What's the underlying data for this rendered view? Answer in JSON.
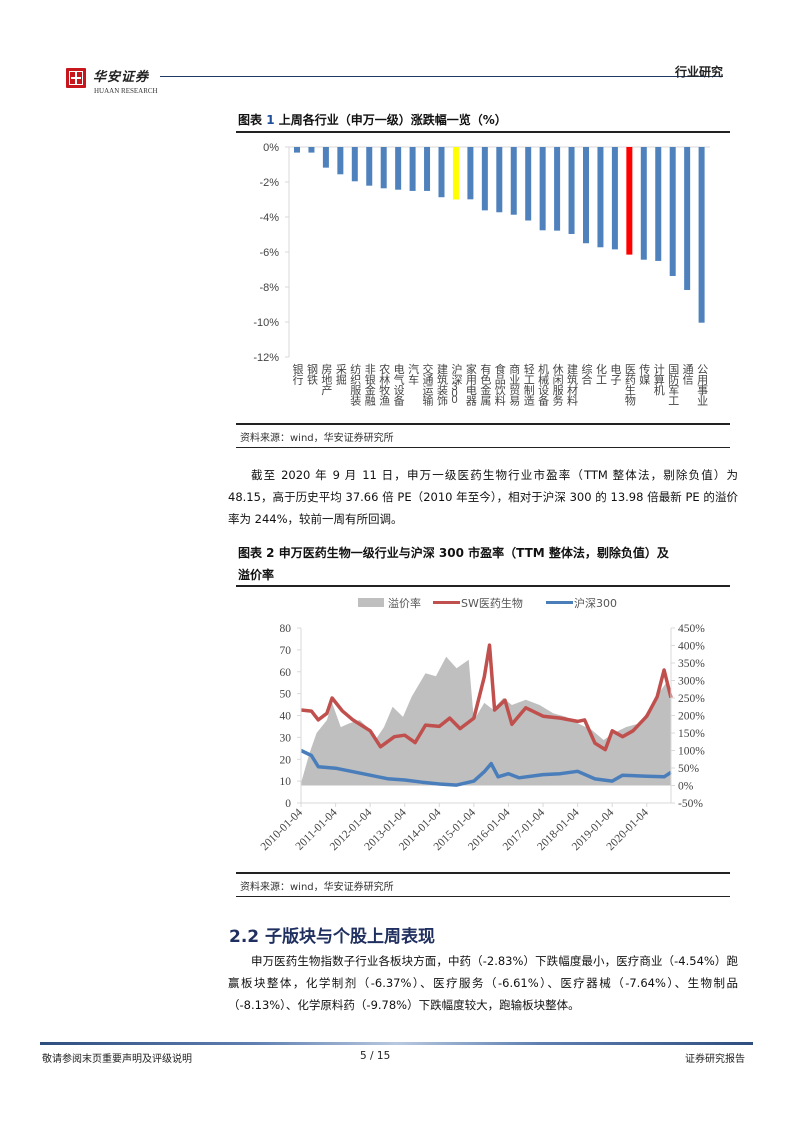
{
  "header": {
    "brand_cn": "华安证券",
    "brand_en": "HUAAN RESEARCH",
    "section_tag": "行业研究"
  },
  "figure1": {
    "label": "图表",
    "num": "1",
    "title": "上周各行业（申万一级）涨跌幅一览（%）",
    "source": "资料来源：wind，华安证券研究所"
  },
  "paragraph1": "截至 2020 年 9 月 11 日，申万一级医药生物行业市盈率（TTM 整体法，剔除负值）为 48.15，高于历史平均 37.66 倍 PE（2010 年至今），相对于沪深 300 的 13.98 倍最新 PE 的溢价率为 244%，较前一周有所回调。",
  "figure2": {
    "title_line1": "图表 2 申万医药生物一级行业与沪深 300 市盈率（TTM 整体法，剔除负值）及",
    "title_line2": "溢价率",
    "source": "资料来源：wind，华安证券研究所"
  },
  "section": {
    "heading": "2.2 子版块与个股上周表现",
    "paragraph": "申万医药生物指数子行业各板块方面，中药（-2.83%）下跌幅度最小，医疗商业（-4.54%）跑赢板块整体，化学制剂（-6.37%）、医疗服务（-6.61%）、医疗器械（-7.64%）、生物制品（-8.13%）、化学原料药（-9.78%）下跌幅度较大，跑输板块整体。"
  },
  "footer": {
    "disclaimer": "敬请参阅末页重要声明及评级说明",
    "page": "5 / 15",
    "doc_type": "证券研究报告"
  },
  "colors": {
    "bar": "#4f81bd",
    "highlight_index": "#ffff00",
    "highlight_pharma": "#ff0000",
    "sw_line": "#c0504d",
    "hs300_line": "#4a7ebb",
    "premium_area": "#bfbfbf",
    "heading": "#1f2f5f"
  },
  "chart_data": [
    {
      "type": "bar",
      "title": "上周各行业（申万一级）涨跌幅一览（%）",
      "xlabel": "",
      "ylabel": "",
      "ylim": [
        -12,
        0
      ],
      "yticks": [
        "0%",
        "-2%",
        "-4%",
        "-6%",
        "-8%",
        "-10%",
        "-12%"
      ],
      "grid": false,
      "categories": [
        "银行",
        "钢铁",
        "房地产",
        "采掘",
        "纺织服装",
        "非银金融",
        "农林牧渔",
        "电气设备",
        "汽车",
        "交通运输",
        "建筑装饰",
        "沪深300",
        "家用电器",
        "有色金属",
        "食品饮料",
        "商业贸易",
        "轻工制造",
        "机械设备",
        "休闲服务",
        "建筑材料",
        "综合",
        "化工",
        "电子",
        "医药生物",
        "传媒",
        "计算机",
        "国防军工",
        "通信",
        "公用事业"
      ],
      "values": [
        -0.32,
        -0.32,
        -1.18,
        -1.56,
        -1.96,
        -2.21,
        -2.36,
        -2.44,
        -2.51,
        -2.51,
        -2.87,
        -3.0,
        -2.99,
        -3.62,
        -3.73,
        -3.87,
        -4.2,
        -4.76,
        -4.78,
        -4.97,
        -5.5,
        -5.73,
        -5.85,
        -6.15,
        -6.44,
        -6.51,
        -7.37,
        -8.17,
        -10.04
      ],
      "highlights": {
        "沪深300": "#ffff00",
        "医药生物": "#ff0000"
      }
    },
    {
      "type": "line",
      "title": "申万医药生物一级行业与沪深300市盈率（TTM整体法，剔除负值）及溢价率",
      "legend": [
        "溢价率",
        "SW医药生物",
        "沪深300"
      ],
      "legend_position": "top",
      "xlabel": "",
      "ylabel": "",
      "ylim": [
        0,
        80
      ],
      "y2lim": [
        -50,
        450
      ],
      "yticks": [
        "0",
        "10",
        "20",
        "30",
        "40",
        "50",
        "60",
        "70",
        "80"
      ],
      "y2ticks": [
        "-50%",
        "0%",
        "50%",
        "100%",
        "150%",
        "200%",
        "250%",
        "300%",
        "350%",
        "400%",
        "450%"
      ],
      "xticks": [
        "2010-01-04",
        "2011-01-04",
        "2012-01-04",
        "2013-01-04",
        "2014-01-04",
        "2015-01-04",
        "2016-01-04",
        "2017-01-04",
        "2018-01-04",
        "2019-01-04",
        "2020-01-04"
      ],
      "series": [
        {
          "name": "溢价率",
          "axis": "right",
          "style": "area",
          "x": [
            2010.0,
            2010.25,
            2010.45,
            2010.75,
            2010.9,
            2011.15,
            2011.4,
            2011.7,
            2012.0,
            2012.15,
            2012.4,
            2012.65,
            2012.95,
            2013.2,
            2013.6,
            2013.9,
            2014.2,
            2014.5,
            2014.85,
            2015.0,
            2015.3,
            2015.55,
            2015.85,
            2016.1,
            2016.5,
            2016.9,
            2017.3,
            2017.65,
            2018.0,
            2018.4,
            2018.75,
            2019.05,
            2019.4,
            2019.8,
            2020.1,
            2020.35,
            2020.55,
            2020.7
          ],
          "values": [
            7,
            93,
            150,
            187,
            236,
            167,
            178,
            187,
            159,
            130,
            167,
            225,
            196,
            254,
            321,
            312,
            368,
            335,
            359,
            187,
            236,
            217,
            250,
            230,
            245,
            230,
            206,
            197,
            178,
            159,
            130,
            150,
            167,
            178,
            225,
            264,
            292,
            244
          ]
        },
        {
          "name": "SW医药生物",
          "axis": "left",
          "style": "line",
          "x": [
            2010.0,
            2010.3,
            2010.5,
            2010.75,
            2010.9,
            2011.2,
            2011.5,
            2012.0,
            2012.3,
            2012.7,
            2013.0,
            2013.3,
            2013.6,
            2014.0,
            2014.3,
            2014.6,
            2015.0,
            2015.3,
            2015.45,
            2015.6,
            2015.9,
            2016.1,
            2016.5,
            2017.0,
            2017.5,
            2018.0,
            2018.2,
            2018.5,
            2018.8,
            2019.0,
            2019.3,
            2019.6,
            2020.0,
            2020.3,
            2020.5,
            2020.7
          ],
          "values": [
            42.5,
            42,
            38,
            41,
            48,
            42,
            38,
            33,
            25.7,
            30.3,
            31,
            27.6,
            35.6,
            35,
            38.8,
            34,
            38.8,
            57.7,
            72.2,
            42.5,
            47,
            36,
            43.5,
            39.7,
            38.8,
            37.3,
            38,
            27.4,
            24.4,
            33,
            30.3,
            33,
            39.7,
            48.6,
            60.8,
            48.15
          ]
        },
        {
          "name": "沪深300",
          "axis": "left",
          "style": "line",
          "x": [
            2010.0,
            2010.3,
            2010.5,
            2011.0,
            2011.5,
            2012.0,
            2012.5,
            2013.0,
            2013.5,
            2014.0,
            2014.5,
            2015.0,
            2015.3,
            2015.5,
            2015.7,
            2016.0,
            2016.3,
            2017.0,
            2017.5,
            2018.0,
            2018.5,
            2019.0,
            2019.3,
            2020.0,
            2020.5,
            2020.7
          ],
          "values": [
            24,
            21.7,
            16.6,
            15.9,
            14.3,
            12.7,
            11.1,
            10.5,
            9.5,
            8.7,
            8.2,
            10,
            14.3,
            18,
            12,
            13.4,
            11.5,
            13,
            13.4,
            14.5,
            11,
            10,
            12.7,
            12.2,
            12,
            13.98
          ]
        }
      ]
    }
  ]
}
